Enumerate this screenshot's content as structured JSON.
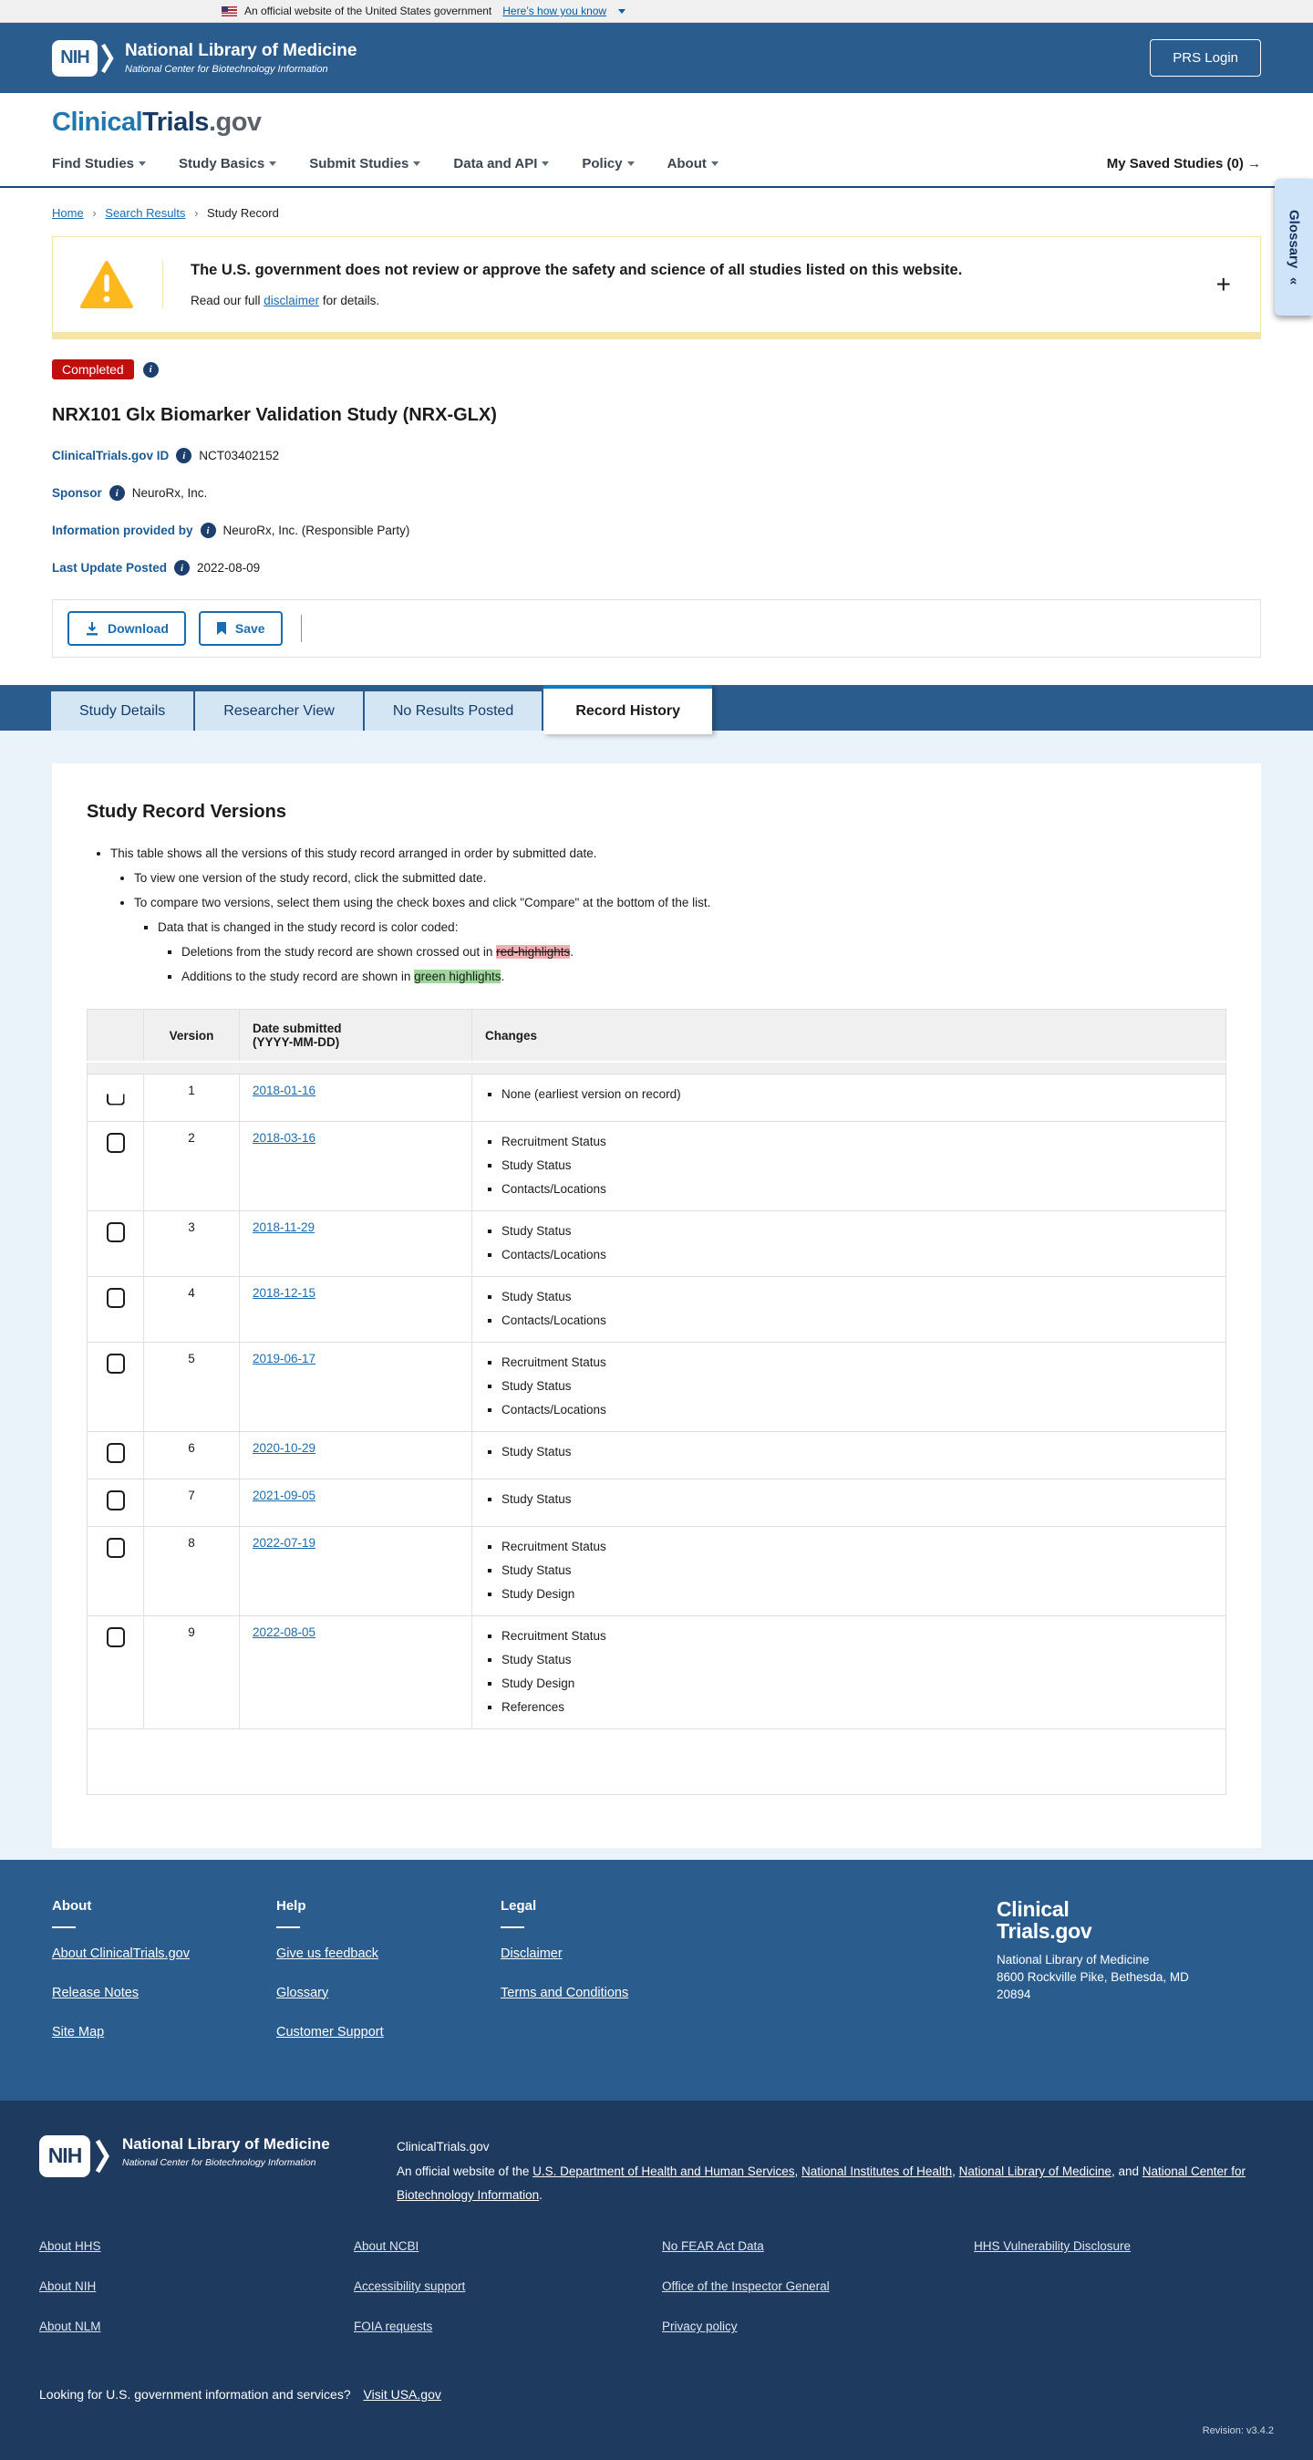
{
  "banner": {
    "text": "An official website of the United States government",
    "link": "Here’s how you know"
  },
  "header": {
    "nih_acronym": "NIH",
    "org": "National Library of Medicine",
    "org_sub": "National Center for Biotechnology Information",
    "login": "PRS Login"
  },
  "brand": {
    "word1": "Clinical",
    "word2": "Trials",
    "suffix": ".gov"
  },
  "nav": {
    "items": [
      "Find Studies",
      "Study Basics",
      "Submit Studies",
      "Data and API",
      "Policy",
      "About"
    ],
    "saved": "My Saved Studies (0)",
    "saved_arrow": "→"
  },
  "breadcrumb": {
    "items": [
      "Home",
      "Search Results"
    ],
    "current": "Study Record",
    "separator": "›"
  },
  "glossary_tab": {
    "label": "Glossary",
    "collapse": "«"
  },
  "warning": {
    "title": "The U.S. government does not review or approve the safety and science of all studies listed on this website.",
    "body_prefix": "Read our full ",
    "link": "disclaimer",
    "body_suffix": " for details.",
    "expand": "+"
  },
  "study": {
    "status": "Completed",
    "title": "NRX101 Glx Biomarker Validation Study (NRX-GLX)",
    "meta": [
      {
        "label": "ClinicalTrials.gov ID",
        "value": "NCT03402152"
      },
      {
        "label": "Sponsor",
        "value": "NeuroRx, Inc."
      },
      {
        "label": "Information provided by",
        "value": "NeuroRx, Inc. (Responsible Party)"
      },
      {
        "label": "Last Update Posted",
        "value": "2022-08-09"
      }
    ]
  },
  "actions": {
    "download": "Download",
    "save": "Save"
  },
  "tabs": [
    {
      "label": "Study Details",
      "active": false
    },
    {
      "label": "Researcher View",
      "active": false
    },
    {
      "label": "No Results Posted",
      "active": false
    },
    {
      "label": "Record History",
      "active": true
    }
  ],
  "record_versions": {
    "heading": "Study Record Versions",
    "instructions": [
      {
        "text": "This table shows all the versions of this study record arranged in order by submitted date.",
        "children": [
          {
            "text": "To view one version of the study record, click the submitted date.",
            "children": []
          },
          {
            "text": "To compare two versions, select them using the check boxes and click \"Compare\" at the bottom of the list.",
            "children": [
              {
                "text": "Data that is changed in the study record is color coded:",
                "children": [
                  {
                    "parts": [
                      {
                        "t": "Deletions from the study record are shown crossed out in "
                      },
                      {
                        "t": "red-highlights",
                        "hl": "red"
                      },
                      {
                        "t": "."
                      }
                    ],
                    "children": []
                  },
                  {
                    "parts": [
                      {
                        "t": "Additions to the study record are shown in "
                      },
                      {
                        "t": "green highlights",
                        "hl": "green"
                      },
                      {
                        "t": "."
                      }
                    ],
                    "children": []
                  }
                ]
              }
            ]
          }
        ]
      }
    ],
    "table": {
      "headers": {
        "checkbox": "",
        "version": "Version",
        "date": "Date submitted\n(YYYY-MM-DD)",
        "changes": "Changes"
      },
      "rows": [
        {
          "version": "1",
          "date": "2018-01-16",
          "changes": [
            "None (earliest version on record)"
          ],
          "clipped": true
        },
        {
          "version": "2",
          "date": "2018-03-16",
          "changes": [
            "Recruitment Status",
            "Study Status",
            "Contacts/Locations"
          ]
        },
        {
          "version": "3",
          "date": "2018-11-29",
          "changes": [
            "Study Status",
            "Contacts/Locations"
          ]
        },
        {
          "version": "4",
          "date": "2018-12-15",
          "changes": [
            "Study Status",
            "Contacts/Locations"
          ]
        },
        {
          "version": "5",
          "date": "2019-06-17",
          "changes": [
            "Recruitment Status",
            "Study Status",
            "Contacts/Locations"
          ]
        },
        {
          "version": "6",
          "date": "2020-10-29",
          "changes": [
            "Study Status"
          ]
        },
        {
          "version": "7",
          "date": "2021-09-05",
          "changes": [
            "Study Status"
          ]
        },
        {
          "version": "8",
          "date": "2022-07-19",
          "changes": [
            "Recruitment Status",
            "Study Status",
            "Study Design"
          ]
        },
        {
          "version": "9",
          "date": "2022-08-05",
          "changes": [
            "Recruitment Status",
            "Study Status",
            "Study Design",
            "References"
          ]
        }
      ]
    }
  },
  "footer": {
    "columns": [
      {
        "title": "About",
        "links": [
          "About ClinicalTrials.gov",
          "Release Notes",
          "Site Map"
        ]
      },
      {
        "title": "Help",
        "links": [
          "Give us feedback",
          "Glossary",
          "Customer Support"
        ]
      },
      {
        "title": "Legal",
        "links": [
          "Disclaimer",
          "Terms and Conditions"
        ]
      }
    ],
    "logo_line1": "Clinical",
    "logo_line2": "Trials.gov",
    "address": [
      "National Library of Medicine",
      "8600 Rockville Pike, Bethesda, MD",
      "20894"
    ]
  },
  "footer_bottom": {
    "nih_acronym": "NIH",
    "org": "National Library of Medicine",
    "org_sub": "National Center for Biotechnology Information",
    "site": "ClinicalTrials.gov",
    "statement_parts": [
      {
        "t": "An official website of the "
      },
      {
        "t": "U.S. Department of Health and Human Services",
        "link": true
      },
      {
        "t": ", "
      },
      {
        "t": "National Institutes of Health",
        "link": true
      },
      {
        "t": ", "
      },
      {
        "t": "National Library of Medicine",
        "link": true
      },
      {
        "t": ", and "
      },
      {
        "t": "National Center for Biotechnology Information",
        "link": true
      },
      {
        "t": "."
      }
    ],
    "link_columns": [
      [
        "About HHS",
        "About NIH",
        "About NLM"
      ],
      [
        "About NCBI",
        "Accessibility support",
        "FOIA requests"
      ],
      [
        "No FEAR Act Data",
        "Office of the Inspector General",
        "Privacy policy"
      ],
      [
        "HHS Vulnerability Disclosure"
      ]
    ],
    "usa_prompt": "Looking for U.S. government information and services?",
    "usa_link": "Visit USA.gov",
    "revision": "Revision: v3.4.2"
  },
  "colors": {
    "header_blue": "#2a5d8e",
    "footer_navy": "#1e3a5e",
    "link_blue": "#1a6cb2",
    "badge_red": "#c10e0e",
    "active_tab_bar": "#0c7bc0",
    "warning_yellow": "#f7e4ab",
    "triangle_yellow": "#fdb81e",
    "highlight_red": "#f3aeb2",
    "highlight_green": "#9ed69b"
  }
}
